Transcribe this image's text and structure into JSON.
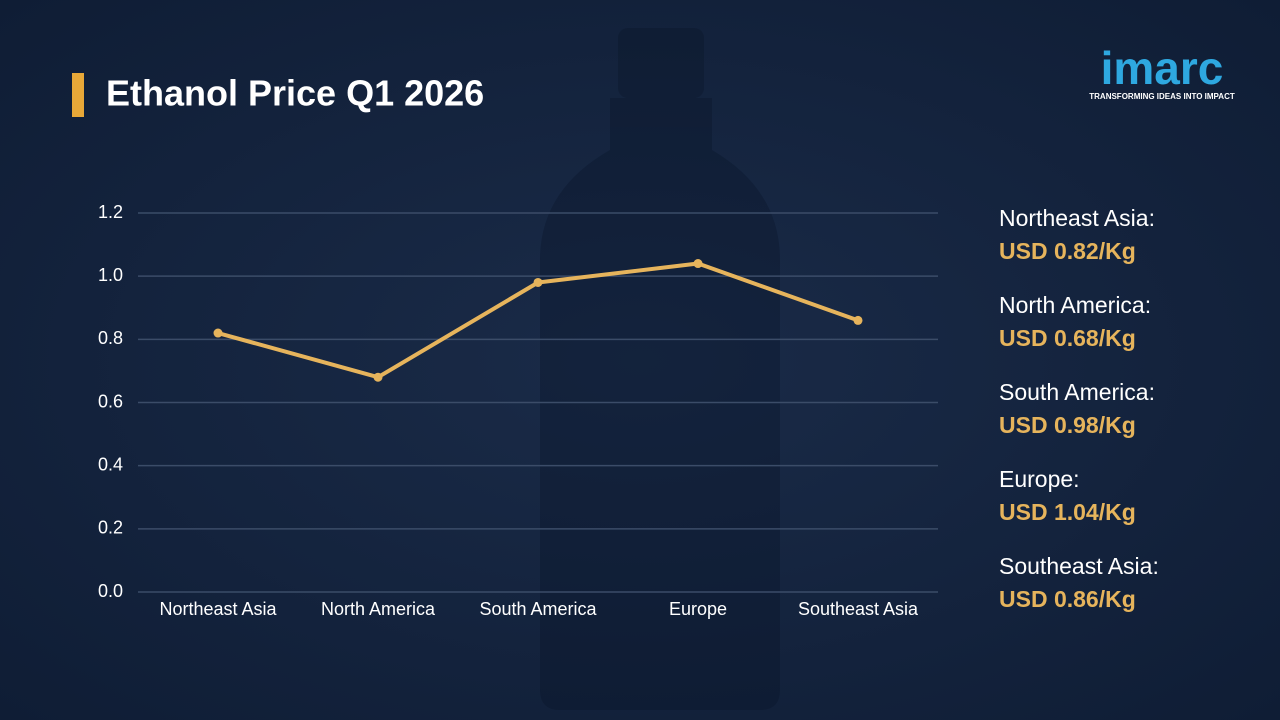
{
  "chart_data": {
    "type": "line",
    "title": "Ethanol Price Q1 2026",
    "categories": [
      "Northeast Asia",
      "North America",
      "South America",
      "Europe",
      "Southeast Asia"
    ],
    "values": [
      0.82,
      0.68,
      0.98,
      1.04,
      0.86
    ],
    "value_labels": [
      "USD 0.82/Kg",
      "USD 0.68/Kg",
      "USD 0.98/Kg",
      "USD 1.04/Kg",
      "USD 0.86/Kg"
    ],
    "value_label_regions": [
      "Northeast Asia:",
      "North America:",
      "South America:",
      "Europe:",
      "Southeast Asia:"
    ],
    "color": "#e6b45c",
    "ylim": [
      0,
      1.2
    ],
    "yticks": [
      {
        "value": 0,
        "label": "0.0"
      },
      0.2,
      0.4,
      0.6,
      0.8,
      {
        "value": 1,
        "label": "1.0"
      },
      1.2
    ],
    "grid": true
  },
  "brand": {
    "name": "imarc",
    "tagline": "TRANSFORMING IDEAS INTO IMPACT"
  }
}
